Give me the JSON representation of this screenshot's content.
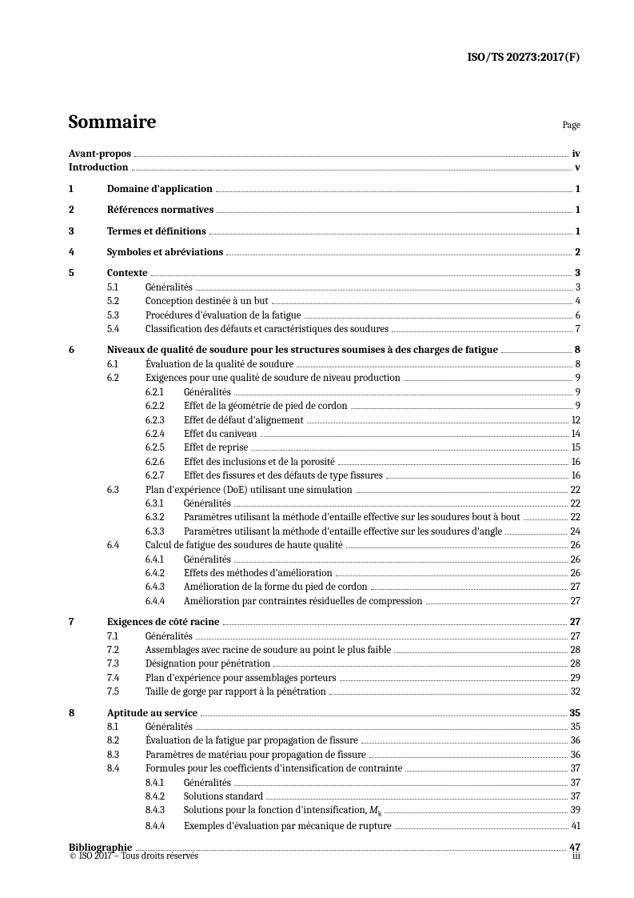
{
  "header": {
    "doc_id": "ISO/TS 20273:2017(F)"
  },
  "title": "Sommaire",
  "page_label": "Page",
  "front": [
    {
      "label": "Avant-propos",
      "page": "iv"
    },
    {
      "label": "Introduction",
      "page": "v"
    }
  ],
  "sections": [
    {
      "num": "1",
      "title": "Domaine d'application",
      "page": "1"
    },
    {
      "num": "2",
      "title": "Références normatives",
      "page": "1"
    },
    {
      "num": "3",
      "title": "Termes et définitions",
      "page": "1"
    },
    {
      "num": "4",
      "title": "Symboles et abréviations",
      "page": "2"
    },
    {
      "num": "5",
      "title": "Contexte",
      "page": "3",
      "subs": [
        {
          "num": "5.1",
          "title": "Généralités",
          "page": "3"
        },
        {
          "num": "5.2",
          "title": "Conception destinée à un but",
          "page": "4"
        },
        {
          "num": "5.3",
          "title": "Procédures d'évaluation de la fatigue",
          "page": "6"
        },
        {
          "num": "5.4",
          "title": "Classification des défauts et caractéristiques des soudures",
          "page": "7"
        }
      ]
    },
    {
      "num": "6",
      "title": "Niveaux de qualité de soudure pour les structures soumises à des charges de fatigue",
      "page": "8",
      "subs": [
        {
          "num": "6.1",
          "title": "Évaluation de la qualité de soudure",
          "page": "8"
        },
        {
          "num": "6.2",
          "title": "Exigences pour une qualité de soudure de niveau production",
          "page": "9",
          "subs": [
            {
              "num": "6.2.1",
              "title": "Généralités",
              "page": "9"
            },
            {
              "num": "6.2.2",
              "title": "Effet de la géométrie de pied de cordon",
              "page": "9"
            },
            {
              "num": "6.2.3",
              "title": "Effet de défaut d'alignement",
              "page": "12"
            },
            {
              "num": "6.2.4",
              "title": "Effet du caniveau",
              "page": "14"
            },
            {
              "num": "6.2.5",
              "title": "Effet de reprise",
              "page": "15"
            },
            {
              "num": "6.2.6",
              "title": "Effet des inclusions et de la porosité",
              "page": "16"
            },
            {
              "num": "6.2.7",
              "title": "Effet des fissures et des défauts de type fissures",
              "page": "16"
            }
          ]
        },
        {
          "num": "6.3",
          "title": "Plan d'expérience (DoE) utilisant une simulation",
          "page": "22",
          "subs": [
            {
              "num": "6.3.1",
              "title": "Généralités",
              "page": "22"
            },
            {
              "num": "6.3.2",
              "title": "Paramètres utilisant la méthode d'entaille effective sur les soudures bout à bout",
              "page": "22",
              "wrap": true
            },
            {
              "num": "6.3.3",
              "title": "Paramètres utilisant la méthode d'entaille effective sur les soudures d'angle",
              "page": "24"
            }
          ]
        },
        {
          "num": "6.4",
          "title": "Calcul de fatigue des soudures de haute qualité",
          "page": "26",
          "subs": [
            {
              "num": "6.4.1",
              "title": "Généralités",
              "page": "26"
            },
            {
              "num": "6.4.2",
              "title": "Effets des méthodes d'amélioration",
              "page": "26"
            },
            {
              "num": "6.4.3",
              "title": "Amélioration de la forme du pied de cordon",
              "page": "27"
            },
            {
              "num": "6.4.4",
              "title": "Amélioration par contraintes résiduelles de compression",
              "page": "27"
            }
          ]
        }
      ]
    },
    {
      "num": "7",
      "title": "Exigences de côté racine",
      "page": "27",
      "subs": [
        {
          "num": "7.1",
          "title": "Généralités",
          "page": "27"
        },
        {
          "num": "7.2",
          "title": "Assemblages avec racine de soudure au point le plus faible",
          "page": "28"
        },
        {
          "num": "7.3",
          "title": "Désignation pour pénétration",
          "page": "28"
        },
        {
          "num": "7.4",
          "title": "Plan d'expérience pour assemblages porteurs",
          "page": "29"
        },
        {
          "num": "7.5",
          "title": "Taille de gorge par rapport à la pénétration",
          "page": "32"
        }
      ]
    },
    {
      "num": "8",
      "title": "Aptitude au service",
      "page": "35",
      "subs": [
        {
          "num": "8.1",
          "title": "Généralités",
          "page": "35"
        },
        {
          "num": "8.2",
          "title": "Évaluation de la fatigue par propagation de fissure",
          "page": "36"
        },
        {
          "num": "8.3",
          "title": "Paramètres de matériau pour propagation de fissure",
          "page": "36"
        },
        {
          "num": "8.4",
          "title": "Formules pour les coefficients d'intensification de contrainte",
          "page": "37",
          "subs": [
            {
              "num": "8.4.1",
              "title": "Généralités",
              "page": "37"
            },
            {
              "num": "8.4.2",
              "title": "Solutions standard",
              "page": "37"
            },
            {
              "num": "8.4.3",
              "title": "Solutions pour la fonction d'intensification, ",
              "mk": true,
              "page": "39"
            },
            {
              "num": "8.4.4",
              "title": "Exemples d'évaluation par mécanique de rupture",
              "page": "41"
            }
          ]
        }
      ]
    }
  ],
  "back": [
    {
      "label": "Bibliographie",
      "page": "47"
    }
  ],
  "footer": {
    "copyright": "© ISO 2017 – Tous droits réservés",
    "pagenum": "iii"
  }
}
